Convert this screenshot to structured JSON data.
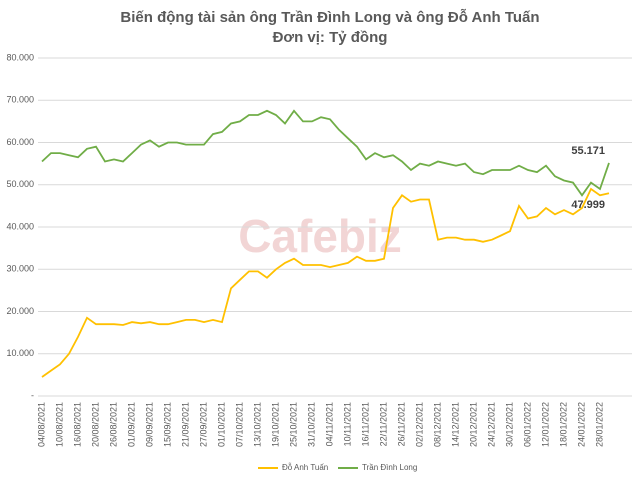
{
  "chart_data": {
    "type": "line",
    "title": "Biến động tài sản ông Trần Đình Long và ông Đỗ Anh Tuấn",
    "subtitle": "Đơn vị: Tỷ đồng",
    "watermark": "Cafebiz",
    "categories": [
      "04/08/2021",
      null,
      "10/08/2021",
      null,
      "16/08/2021",
      null,
      "20/08/2021",
      null,
      "26/08/2021",
      null,
      "01/09/2021",
      null,
      "09/09/2021",
      null,
      "15/09/2021",
      null,
      "21/09/2021",
      null,
      "27/09/2021",
      null,
      "01/10/2021",
      null,
      "07/10/2021",
      null,
      "13/10/2021",
      null,
      "19/10/2021",
      null,
      "25/10/2021",
      null,
      "31/10/2021",
      null,
      "04/11/2021",
      null,
      "10/11/2021",
      null,
      "16/11/2021",
      null,
      "22/11/2021",
      null,
      "26/11/2021",
      null,
      "02/12/2021",
      null,
      "08/12/2021",
      null,
      "14/12/2021",
      null,
      "20/12/2021",
      null,
      "24/12/2021",
      null,
      "30/12/2021",
      null,
      "06/01/2022",
      null,
      "12/01/2022",
      null,
      "18/01/2022",
      null,
      "24/01/2022",
      null,
      "28/01/2022",
      null
    ],
    "series": [
      {
        "name": "Đỗ Anh Tuấn",
        "color": "#ffc000",
        "values": [
          4500,
          6000,
          7500,
          10000,
          14000,
          18500,
          17000,
          17000,
          17000,
          16800,
          17500,
          17200,
          17500,
          17000,
          17000,
          17500,
          18000,
          18000,
          17500,
          18000,
          17500,
          25500,
          27500,
          29500,
          29500,
          28000,
          30000,
          31500,
          32500,
          31000,
          31000,
          31000,
          30500,
          31000,
          31500,
          33000,
          32000,
          32000,
          32500,
          44500,
          47500,
          46000,
          46500,
          46500,
          37000,
          37500,
          37500,
          37000,
          37000,
          36500,
          37000,
          38000,
          39000,
          45000,
          42000,
          42500,
          44500,
          43000,
          44000,
          43000,
          44500,
          49000,
          47500,
          47999
        ],
        "value_labels": [
          null,
          null,
          null,
          null,
          null,
          null,
          null,
          null,
          null,
          null,
          null,
          null,
          null,
          null,
          null,
          null,
          null,
          null,
          null,
          null,
          null,
          null,
          null,
          null,
          null,
          null,
          null,
          null,
          null,
          null,
          null,
          null,
          null,
          null,
          null,
          null,
          null,
          null,
          null,
          null,
          null,
          null,
          null,
          null,
          null,
          null,
          null,
          null,
          null,
          null,
          null,
          null,
          null,
          null,
          null,
          null,
          null,
          null,
          null,
          null,
          null,
          null,
          null,
          "47.999"
        ]
      },
      {
        "name": "Trần Đình Long",
        "color": "#70ad47",
        "values": [
          55500,
          57500,
          57500,
          57000,
          56500,
          58500,
          59000,
          55500,
          56000,
          55500,
          57500,
          59500,
          60500,
          59000,
          60000,
          60000,
          59500,
          59500,
          59500,
          62000,
          62500,
          64500,
          65000,
          66500,
          66500,
          67500,
          66500,
          64500,
          67500,
          65000,
          65000,
          66000,
          65500,
          63000,
          61000,
          59000,
          56000,
          57500,
          56500,
          57000,
          55500,
          53500,
          55000,
          54500,
          55500,
          55000,
          54500,
          55000,
          53000,
          52500,
          53500,
          53500,
          53500,
          54500,
          53500,
          53000,
          54500,
          52000,
          51000,
          50500,
          47500,
          50500,
          49000,
          55171
        ],
        "value_labels": [
          null,
          null,
          null,
          null,
          null,
          null,
          null,
          null,
          null,
          null,
          null,
          null,
          null,
          null,
          null,
          null,
          null,
          null,
          null,
          null,
          null,
          null,
          null,
          null,
          null,
          null,
          null,
          null,
          null,
          null,
          null,
          null,
          null,
          null,
          null,
          null,
          null,
          null,
          null,
          null,
          null,
          null,
          null,
          null,
          null,
          null,
          null,
          null,
          null,
          null,
          null,
          null,
          null,
          null,
          null,
          null,
          null,
          null,
          null,
          null,
          null,
          null,
          null,
          "55.171"
        ]
      }
    ],
    "ylim": [
      0,
      80000
    ],
    "yticks": [
      {
        "value": 0,
        "label": "-"
      },
      {
        "value": 10000,
        "label": "10.000"
      },
      {
        "value": 20000,
        "label": "20.000"
      },
      {
        "value": 30000,
        "label": "30.000"
      },
      {
        "value": 40000,
        "label": "40.000"
      },
      {
        "value": 50000,
        "label": "50.000"
      },
      {
        "value": 60000,
        "label": "60.000"
      },
      {
        "value": 70000,
        "label": "70.000"
      },
      {
        "value": 80000,
        "label": "80.000"
      }
    ],
    "grid": true,
    "legend": "bottom"
  }
}
